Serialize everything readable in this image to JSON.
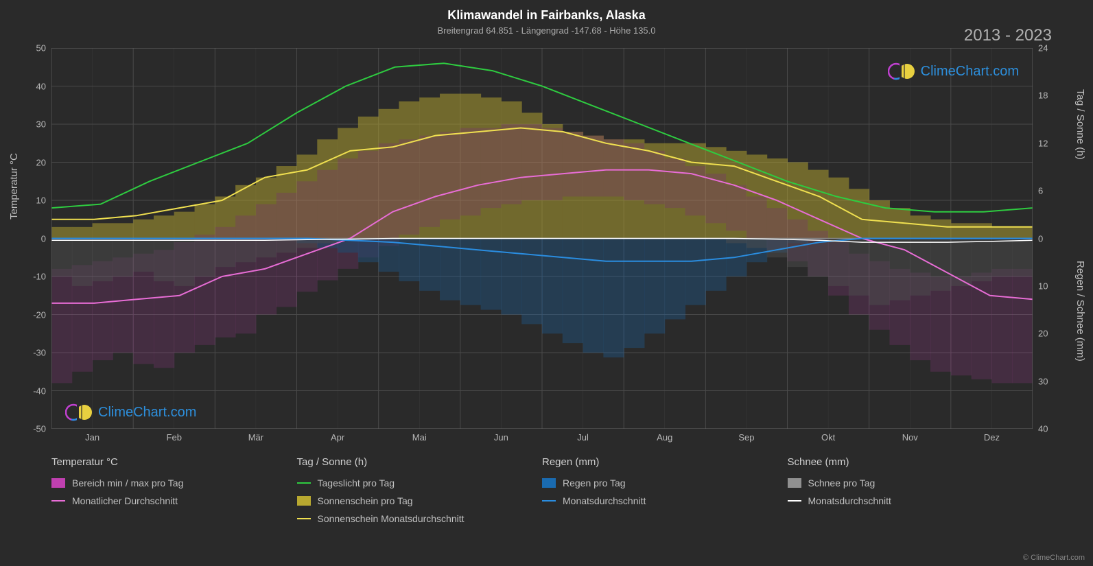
{
  "title": "Klimawandel in Fairbanks, Alaska",
  "subtitle": "Breitengrad 64.851 - Längengrad -147.68 - Höhe 135.0",
  "year_range": "2013 - 2023",
  "copyright": "© ClimeChart.com",
  "watermark_text": "ClimeChart.com",
  "axis_left_label": "Temperatur °C",
  "axis_right1_label": "Tag / Sonne (h)",
  "axis_right2_label": "Regen / Schnee (mm)",
  "background_color": "#2a2a2a",
  "grid_color": "#4a4a4a",
  "axis_color": "#888888",
  "font_color": "#c8c8c8",
  "y_left": {
    "min": -50,
    "max": 50,
    "step": 10,
    "ticks": [
      50,
      40,
      30,
      20,
      10,
      0,
      -10,
      -20,
      -30,
      -40,
      -50
    ]
  },
  "y_right_sun": {
    "min": 0,
    "max": 24,
    "step": 6,
    "ticks": [
      24,
      18,
      12,
      6,
      0
    ]
  },
  "y_right_precip": {
    "min": 0,
    "max": 40,
    "step": 10,
    "ticks": [
      0,
      10,
      20,
      30,
      40
    ]
  },
  "months": [
    "Jan",
    "Feb",
    "Mär",
    "Apr",
    "Mai",
    "Jun",
    "Jul",
    "Aug",
    "Sep",
    "Okt",
    "Nov",
    "Dez"
  ],
  "series": {
    "daylight": {
      "color": "#2ecc40",
      "width": 2,
      "values": [
        8,
        9,
        15,
        20,
        25,
        33,
        40,
        45,
        46,
        44,
        40,
        35,
        30,
        25,
        20,
        15,
        11,
        8,
        7,
        7,
        8
      ]
    },
    "sunshine_avg": {
      "color": "#f0e050",
      "width": 2,
      "values": [
        5,
        5,
        6,
        8,
        10,
        16,
        18,
        23,
        24,
        27,
        28,
        29,
        28,
        25,
        23,
        20,
        19,
        15,
        11,
        5,
        4,
        3,
        3,
        3
      ]
    },
    "temp_max_avg": {
      "color": "#e86dd6",
      "width": 2,
      "values": [
        -17,
        -17,
        -16,
        -15,
        -10,
        -8,
        -4,
        0,
        7,
        11,
        14,
        16,
        17,
        18,
        18,
        17,
        14,
        10,
        5,
        0,
        -3,
        -9,
        -15,
        -16
      ]
    },
    "temp_min_hint": {
      "color": "#e86dd6"
    },
    "rain_avg": {
      "color": "#2a8de0",
      "width": 2,
      "values": [
        0,
        0,
        0,
        0,
        0,
        0,
        0,
        -0.5,
        -1,
        -2,
        -3,
        -4,
        -5,
        -6,
        -6,
        -6,
        -5,
        -3,
        -1,
        0,
        0,
        0,
        0,
        0
      ]
    },
    "snow_avg": {
      "color": "#ffffff",
      "width": 1.5,
      "values": [
        -0.5,
        -0.5,
        -0.5,
        -0.5,
        -0.5,
        -0.5,
        -0.3,
        -0.2,
        0,
        0,
        0,
        0,
        0,
        0,
        0,
        0,
        0,
        -0.2,
        -0.5,
        -1,
        -1,
        -1,
        -0.8,
        -0.5
      ]
    }
  },
  "bar_area": {
    "sunshine_bars_color": "#b8a830",
    "rain_bars_color": "#1a6bb0",
    "snow_bars_color": "#707070",
    "temp_range_color": "#c040b0",
    "opacity": 0.5,
    "sunshine_daily": [
      3,
      3,
      4,
      4,
      5,
      6,
      7,
      9,
      11,
      14,
      16,
      19,
      22,
      26,
      29,
      32,
      34,
      36,
      37,
      38,
      38,
      37,
      36,
      33,
      30,
      28,
      27,
      26,
      26,
      25,
      25,
      25,
      24,
      23,
      22,
      21,
      20,
      18,
      16,
      13,
      10,
      8,
      6,
      5,
      4,
      4,
      3,
      3
    ],
    "temp_min_daily": [
      -38,
      -35,
      -32,
      -30,
      -33,
      -34,
      -30,
      -28,
      -26,
      -25,
      -20,
      -18,
      -14,
      -11,
      -8,
      -5,
      -2,
      1,
      3,
      5,
      6,
      8,
      9,
      10,
      10,
      11,
      11,
      11,
      10,
      9,
      8,
      6,
      4,
      2,
      0,
      -3,
      -6,
      -10,
      -15,
      -20,
      -24,
      -28,
      -32,
      -35,
      -36,
      -37,
      -38,
      -38
    ],
    "temp_max_daily": [
      -8,
      -7,
      -6,
      -5,
      -4,
      -3,
      -1,
      1,
      3,
      6,
      9,
      12,
      15,
      18,
      21,
      23,
      25,
      26,
      27,
      28,
      29,
      29,
      30,
      30,
      29,
      28,
      27,
      26,
      25,
      23,
      21,
      19,
      17,
      14,
      11,
      8,
      5,
      2,
      -1,
      -4,
      -6,
      -8,
      -9,
      -10,
      -10,
      -9,
      -8,
      -8
    ],
    "rain_daily": [
      0,
      0,
      0,
      0,
      0,
      0,
      0,
      0,
      0,
      0,
      0,
      0,
      1,
      2,
      3,
      5,
      7,
      9,
      11,
      13,
      14,
      15,
      16,
      18,
      20,
      22,
      24,
      25,
      23,
      20,
      17,
      14,
      11,
      8,
      5,
      3,
      1,
      0,
      0,
      0,
      0,
      0,
      0,
      0,
      0,
      0,
      0,
      0
    ],
    "snow_daily": [
      8,
      10,
      9,
      8,
      7,
      9,
      10,
      8,
      6,
      5,
      4,
      3,
      2,
      1,
      0,
      0,
      0,
      0,
      0,
      0,
      0,
      0,
      0,
      0,
      0,
      0,
      0,
      0,
      0,
      0,
      0,
      0,
      0,
      1,
      2,
      4,
      6,
      8,
      10,
      12,
      14,
      13,
      12,
      11,
      10,
      9,
      8,
      8
    ]
  },
  "legend": {
    "temp": {
      "header": "Temperatur °C",
      "items": [
        {
          "type": "swatch",
          "color": "#c040b0",
          "label": "Bereich min / max pro Tag"
        },
        {
          "type": "line",
          "color": "#e86dd6",
          "label": "Monatlicher Durchschnitt"
        }
      ]
    },
    "sun": {
      "header": "Tag / Sonne (h)",
      "items": [
        {
          "type": "line",
          "color": "#2ecc40",
          "label": "Tageslicht pro Tag"
        },
        {
          "type": "swatch",
          "color": "#b8a830",
          "label": "Sonnenschein pro Tag"
        },
        {
          "type": "line",
          "color": "#f0e050",
          "label": "Sonnenschein Monatsdurchschnitt"
        }
      ]
    },
    "rain": {
      "header": "Regen (mm)",
      "items": [
        {
          "type": "swatch",
          "color": "#1a6bb0",
          "label": "Regen pro Tag"
        },
        {
          "type": "line",
          "color": "#2a8de0",
          "label": "Monatsdurchschnitt"
        }
      ]
    },
    "snow": {
      "header": "Schnee (mm)",
      "items": [
        {
          "type": "swatch",
          "color": "#909090",
          "label": "Schnee pro Tag"
        },
        {
          "type": "line",
          "color": "#ffffff",
          "label": "Monatsdurchschnitt"
        }
      ]
    }
  }
}
